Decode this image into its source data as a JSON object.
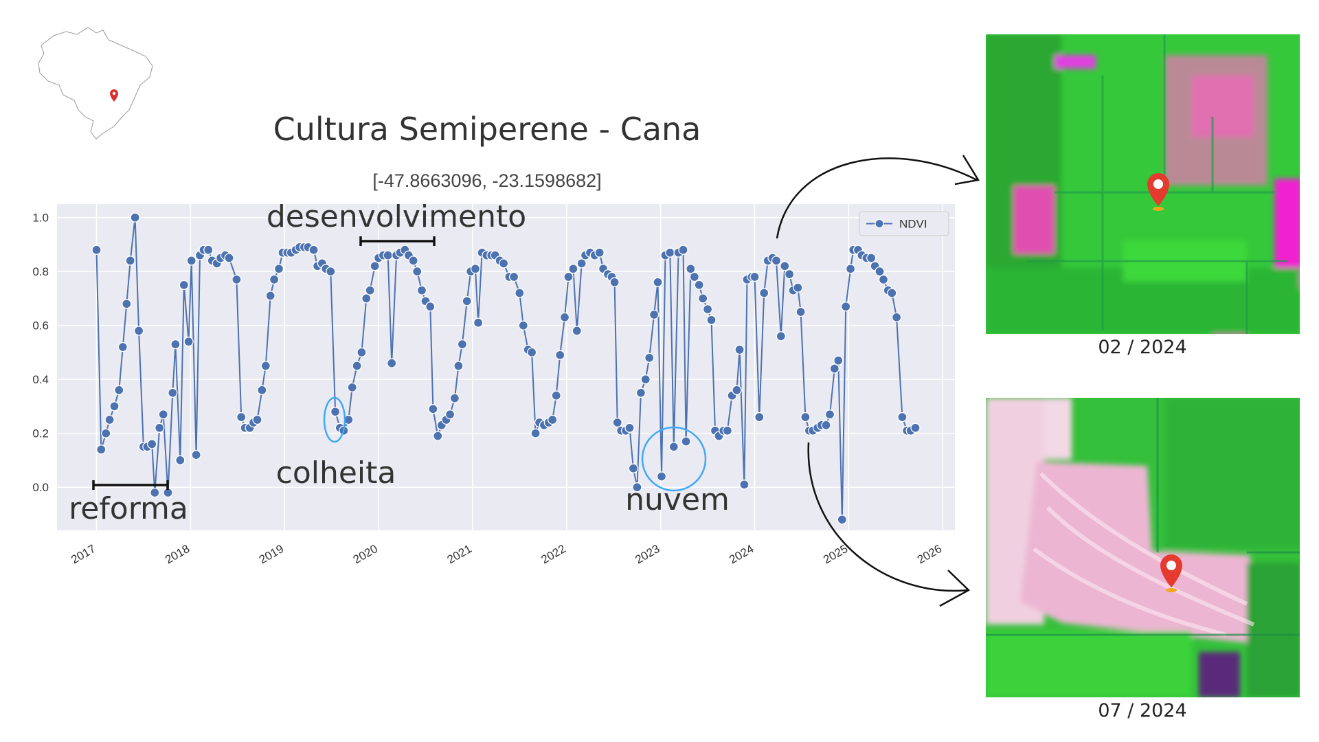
{
  "chart_data": {
    "type": "line",
    "title": "Cultura Semiperene - Cana",
    "subtitle": "[-47.8663096, -23.1598682]",
    "x": [
      2017.0,
      2017.05,
      2017.1,
      2017.14,
      2017.19,
      2017.24,
      2017.28,
      2017.32,
      2017.36,
      2017.41,
      2017.45,
      2017.5,
      2017.54,
      2017.59,
      2017.62,
      2017.67,
      2017.71,
      2017.76,
      2017.81,
      2017.84,
      2017.89,
      2017.93,
      2017.98,
      2018.01,
      2018.06,
      2018.1,
      2018.14,
      2018.19,
      2018.23,
      2018.28,
      2018.32,
      2018.37,
      2018.41,
      2018.49,
      2018.54,
      2018.58,
      2018.63,
      2018.67,
      2018.71,
      2018.76,
      2018.8,
      2018.85,
      2018.89,
      2018.94,
      2018.98,
      2019.03,
      2019.07,
      2019.12,
      2019.16,
      2019.21,
      2019.25,
      2019.31,
      2019.35,
      2019.4,
      2019.44,
      2019.49,
      2019.54,
      2019.59,
      2019.63,
      2019.68,
      2019.72,
      2019.77,
      2019.82,
      2019.87,
      2019.91,
      2019.96,
      2020.0,
      2020.05,
      2020.1,
      2020.14,
      2020.19,
      2020.23,
      2020.28,
      2020.32,
      2020.37,
      2020.41,
      2020.46,
      2020.5,
      2020.55,
      2020.58,
      2020.63,
      2020.67,
      2020.72,
      2020.76,
      2020.81,
      2020.85,
      2020.89,
      2020.94,
      2020.98,
      2021.03,
      2021.06,
      2021.1,
      2021.15,
      2021.2,
      2021.24,
      2021.29,
      2021.33,
      2021.39,
      2021.44,
      2021.5,
      2021.54,
      2021.59,
      2021.63,
      2021.67,
      2021.71,
      2021.76,
      2021.81,
      2021.85,
      2021.89,
      2021.93,
      2021.98,
      2022.02,
      2022.07,
      2022.11,
      2022.16,
      2022.2,
      2022.25,
      2022.3,
      2022.35,
      2022.39,
      2022.44,
      2022.48,
      2022.51,
      2022.54,
      2022.58,
      2022.63,
      2022.67,
      2022.71,
      2022.75,
      2022.79,
      2022.84,
      2022.88,
      2022.93,
      2022.97,
      2023.01,
      2023.05,
      2023.1,
      2023.14,
      2023.19,
      2023.24,
      2023.27,
      2023.32,
      2023.36,
      2023.41,
      2023.45,
      2023.5,
      2023.54,
      2023.58,
      2023.62,
      2023.67,
      2023.71,
      2023.76,
      2023.81,
      2023.84,
      2023.89,
      2023.92,
      2023.97,
      2024.0,
      2024.05,
      2024.1,
      2024.14,
      2024.19,
      2024.23,
      2024.28,
      2024.32,
      2024.37,
      2024.41,
      2024.46,
      2024.49,
      2024.54,
      2024.58,
      2024.62,
      2024.67,
      2024.71,
      2024.76,
      2024.8,
      2024.85,
      2024.89,
      2024.93,
      2024.97,
      2025.02,
      2025.05,
      2025.1,
      2025.14,
      2025.19,
      2025.24,
      2025.28,
      2025.33,
      2025.37,
      2025.42,
      2025.46,
      2025.51,
      2025.57,
      2025.62,
      2025.66,
      2025.71
    ],
    "series": [
      {
        "name": "NDVI",
        "color": "#4c72b0",
        "values": [
          0.88,
          0.14,
          0.2,
          0.25,
          0.3,
          0.36,
          0.52,
          0.68,
          0.84,
          1.0,
          0.58,
          0.15,
          0.15,
          0.16,
          -0.02,
          0.22,
          0.27,
          -0.02,
          0.35,
          0.53,
          0.1,
          0.75,
          0.54,
          0.84,
          0.12,
          0.86,
          0.88,
          0.88,
          0.84,
          0.83,
          0.85,
          0.86,
          0.85,
          0.77,
          0.26,
          0.22,
          0.22,
          0.24,
          0.25,
          0.36,
          0.45,
          0.71,
          0.77,
          0.81,
          0.87,
          0.87,
          0.87,
          0.88,
          0.89,
          0.89,
          0.89,
          0.88,
          0.82,
          0.83,
          0.81,
          0.8,
          0.28,
          0.22,
          0.21,
          0.25,
          0.37,
          0.45,
          0.5,
          0.7,
          0.73,
          0.82,
          0.85,
          0.86,
          0.86,
          0.46,
          0.86,
          0.87,
          0.88,
          0.86,
          0.84,
          0.8,
          0.73,
          0.69,
          0.67,
          0.29,
          0.19,
          0.23,
          0.25,
          0.27,
          0.33,
          0.45,
          0.53,
          0.69,
          0.8,
          0.81,
          0.61,
          0.87,
          0.86,
          0.86,
          0.86,
          0.84,
          0.83,
          0.78,
          0.78,
          0.72,
          0.6,
          0.51,
          0.5,
          0.2,
          0.24,
          0.23,
          0.24,
          0.25,
          0.34,
          0.49,
          0.63,
          0.78,
          0.81,
          0.58,
          0.83,
          0.86,
          0.87,
          0.86,
          0.87,
          0.81,
          0.79,
          0.78,
          0.76,
          0.24,
          0.21,
          0.21,
          0.22,
          0.07,
          0.0,
          0.35,
          0.4,
          0.48,
          0.64,
          0.76,
          0.04,
          0.86,
          0.87,
          0.15,
          0.87,
          0.88,
          0.17,
          0.81,
          0.78,
          0.75,
          0.7,
          0.66,
          0.62,
          0.21,
          0.19,
          0.21,
          0.21,
          0.34,
          0.36,
          0.51,
          0.01,
          0.77,
          0.78,
          0.78,
          0.26,
          0.72,
          0.84,
          0.85,
          0.84,
          0.56,
          0.82,
          0.79,
          0.73,
          0.74,
          0.65,
          0.26,
          0.21,
          0.21,
          0.22,
          0.23,
          0.23,
          0.27,
          0.44,
          0.47,
          -0.12,
          0.67,
          0.81,
          0.88,
          0.88,
          0.86,
          0.85,
          0.85,
          0.82,
          0.8,
          0.77,
          0.73,
          0.72,
          0.63,
          0.26,
          0.21,
          0.21,
          0.22
        ]
      }
    ],
    "xlim": [
      2016.58,
      2026.13
    ],
    "xticks": [
      2017,
      2018,
      2019,
      2020,
      2021,
      2022,
      2023,
      2024,
      2025,
      2026
    ],
    "ylim": [
      -0.16,
      1.05
    ],
    "yticks": [
      {
        "value": 0,
        "label": "0.0"
      },
      0.2,
      0.4,
      0.6,
      0.8,
      {
        "value": 1,
        "label": "1.0"
      }
    ],
    "grid": true,
    "legend": "upper right",
    "annotations": [
      {
        "text": "desenvolvimento"
      },
      {
        "text": "colheita"
      },
      {
        "text": "reforma"
      },
      {
        "text": "nuvem"
      }
    ]
  },
  "images": [
    {
      "caption": "02 / 2024"
    },
    {
      "caption": "07 / 2024"
    }
  ]
}
